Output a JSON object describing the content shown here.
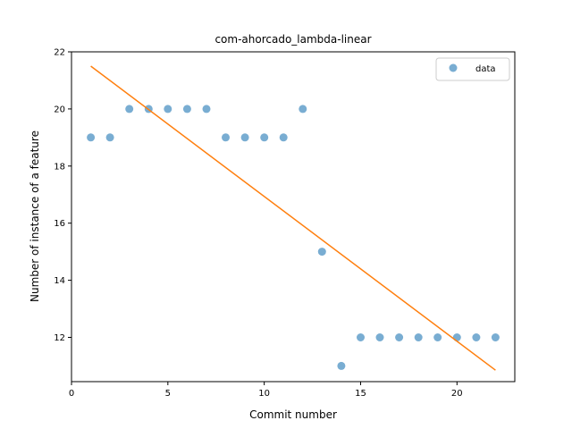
{
  "chart_data": {
    "type": "scatter",
    "title": "com-ahorcado_lambda-linear",
    "xlabel": "Commit number",
    "ylabel": "Number of instance of a feature",
    "xlim": [
      0,
      23
    ],
    "ylim": [
      10.45,
      22.0
    ],
    "xticks": [
      0,
      5,
      10,
      15,
      20
    ],
    "yticks": [
      12,
      14,
      16,
      18,
      20,
      22
    ],
    "grid": false,
    "legend": {
      "placement": "top-right",
      "entries": [
        "data"
      ]
    },
    "series": [
      {
        "name": "data",
        "kind": "points",
        "color": "#1f77b4",
        "x": [
          1,
          2,
          3,
          4,
          5,
          6,
          7,
          8,
          9,
          10,
          11,
          12,
          13,
          14,
          15,
          16,
          17,
          18,
          19,
          20,
          21,
          22
        ],
        "y": [
          19,
          19,
          20,
          20,
          20,
          20,
          20,
          19,
          19,
          19,
          19,
          20,
          15,
          11,
          12,
          12,
          12,
          12,
          12,
          12,
          12,
          12
        ]
      },
      {
        "kind": "line",
        "color": "#ff7f0e",
        "x": [
          1,
          22
        ],
        "y": [
          21.5,
          10.85
        ]
      }
    ]
  }
}
